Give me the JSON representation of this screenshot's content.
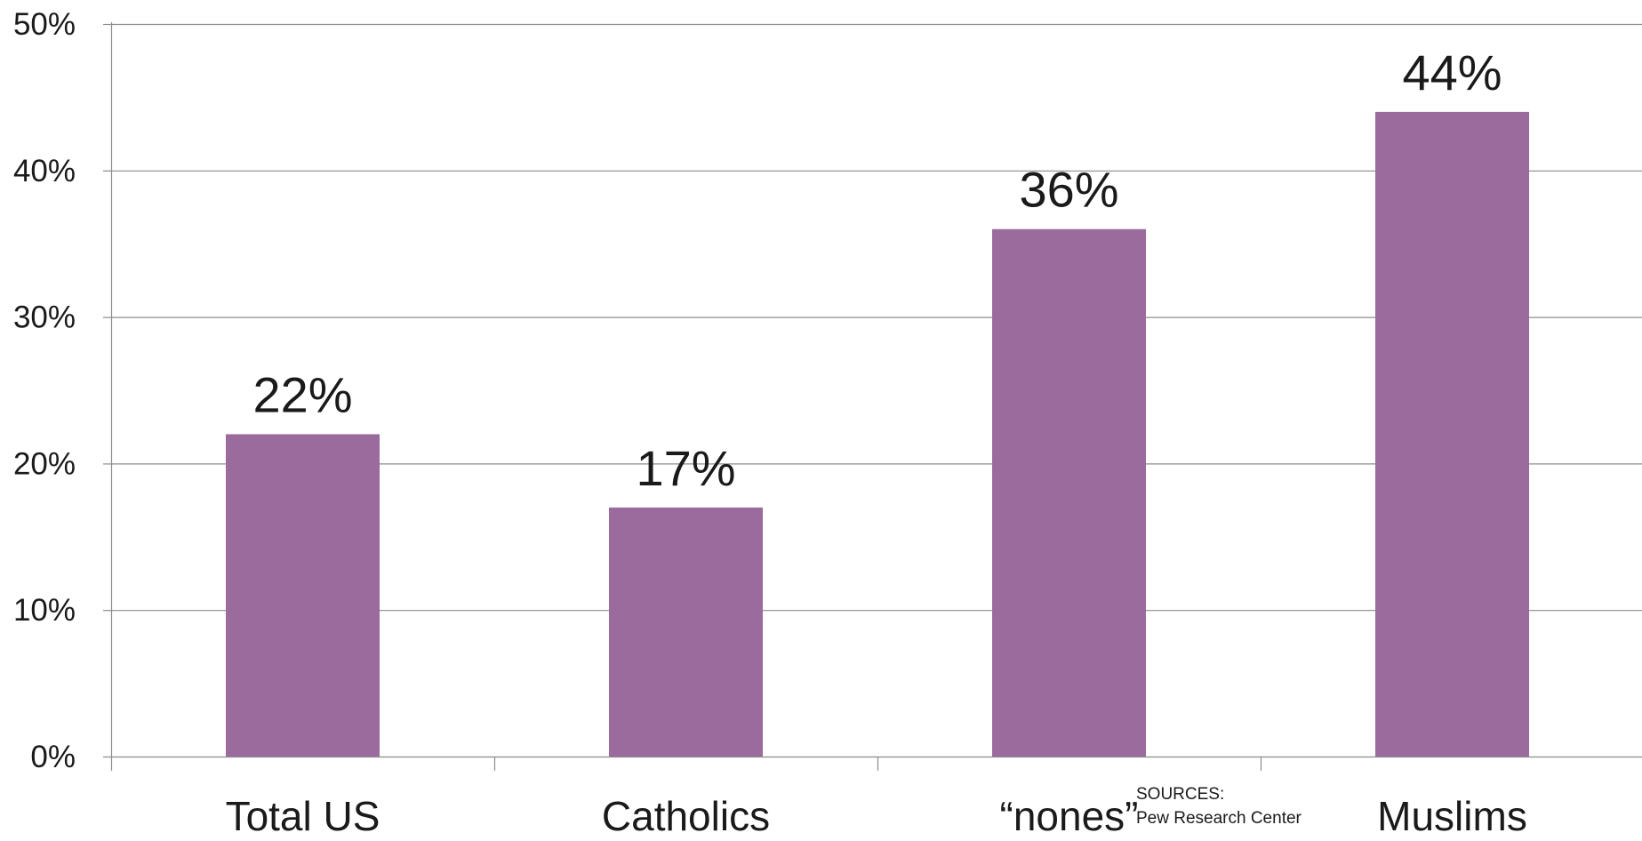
{
  "chart_data": {
    "type": "bar",
    "categories": [
      "Total US",
      "Catholics",
      "“nones”",
      "Muslims"
    ],
    "values": [
      22,
      17,
      36,
      44
    ],
    "data_labels": [
      "22%",
      "17%",
      "36%",
      "44%"
    ],
    "ylim": [
      0,
      50
    ],
    "y_ticks": [
      0,
      10,
      20,
      30,
      40,
      50
    ],
    "y_tick_labels": [
      "0%",
      "10%",
      "20%",
      "30%",
      "40%",
      "50%"
    ],
    "grid": true,
    "legend": "none",
    "bar_color": "#9b6b9e",
    "title": "",
    "xlabel": "",
    "ylabel": ""
  },
  "source": {
    "line1": "SOURCES:",
    "line2": "Pew Research Center"
  }
}
